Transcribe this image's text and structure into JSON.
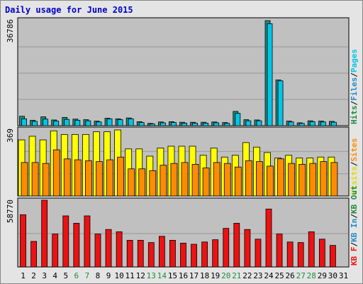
{
  "window": {
    "title": "Daily usage for June 2015"
  },
  "colors": {
    "page_bg": "#e4e4e4",
    "plot_bg": "#c0c0c0",
    "grid": "#999999",
    "pages": "#1e8c84",
    "files": "#00c6e8",
    "visits": "#ffff00",
    "sites": "#ff8c00",
    "kb": "#ee1111",
    "weekend": "#1e8c3c",
    "slash": "#000000"
  },
  "chart_data": [
    {
      "type": "bar",
      "panel": "hits",
      "ymax_label": "36786",
      "ymax": 36786,
      "grid_fractions": [
        0.25,
        0.5,
        0.75
      ],
      "categories": [
        "1",
        "2",
        "3",
        "4",
        "5",
        "6",
        "7",
        "8",
        "9",
        "10",
        "11",
        "12",
        "13",
        "14",
        "15",
        "16",
        "17",
        "18",
        "19",
        "20",
        "21",
        "22",
        "23",
        "24",
        "25",
        "26",
        "27",
        "28",
        "29",
        "30",
        "31"
      ],
      "weekend_days": [
        "6",
        "7",
        "13",
        "14",
        "20",
        "21",
        "27",
        "28"
      ],
      "legend": [
        {
          "label": "Hits",
          "color": "#1e8c3c"
        },
        {
          "label": "/",
          "color": "#000000"
        },
        {
          "label": "Files",
          "color": "#1e8cc8"
        },
        {
          "label": "/",
          "color": "#000000"
        },
        {
          "label": "Pages",
          "color": "#00c6e8"
        }
      ],
      "series": [
        {
          "name": "Hits",
          "color": "#1e8c84",
          "values": [
            3300,
            1900,
            3100,
            2000,
            2900,
            2300,
            2100,
            1600,
            2600,
            2400,
            2700,
            1400,
            800,
            1300,
            1400,
            1200,
            1200,
            1200,
            1300,
            1100,
            5000,
            2100,
            2000,
            36786,
            16000,
            1600,
            1000,
            1700,
            1600,
            1500,
            0
          ]
        },
        {
          "name": "Files",
          "color": "#00c6e8",
          "values": [
            2400,
            1500,
            2300,
            1600,
            2200,
            1900,
            1700,
            1300,
            2400,
            2100,
            2400,
            1100,
            600,
            1000,
            1100,
            900,
            900,
            900,
            1000,
            800,
            4300,
            1700,
            1700,
            35700,
            15700,
            1300,
            800,
            1400,
            1300,
            1200,
            0
          ]
        },
        {
          "name": "Pages",
          "color": "#00c6e8",
          "values": [
            0,
            0,
            0,
            0,
            0,
            0,
            0,
            0,
            0,
            0,
            0,
            0,
            0,
            0,
            0,
            0,
            0,
            0,
            0,
            0,
            0,
            0,
            0,
            0,
            0,
            0,
            0,
            0,
            0,
            0,
            0
          ]
        }
      ]
    },
    {
      "type": "bar",
      "panel": "visits",
      "ymax_label": "369",
      "ymax": 369,
      "grid_fractions": [
        0.333,
        0.667
      ],
      "categories": [
        "1",
        "2",
        "3",
        "4",
        "5",
        "6",
        "7",
        "8",
        "9",
        "10",
        "11",
        "12",
        "13",
        "14",
        "15",
        "16",
        "17",
        "18",
        "19",
        "20",
        "21",
        "22",
        "23",
        "24",
        "25",
        "26",
        "27",
        "28",
        "29",
        "30",
        "31"
      ],
      "legend": [
        {
          "label": "Visits",
          "color": "#dddd00"
        },
        {
          "label": "/",
          "color": "#000000"
        },
        {
          "label": "Sites",
          "color": "#ff8c00"
        }
      ],
      "series": [
        {
          "name": "Visits",
          "color": "#ffff00",
          "values": [
            310,
            330,
            310,
            360,
            340,
            340,
            340,
            355,
            355,
            365,
            260,
            260,
            220,
            265,
            275,
            275,
            275,
            225,
            265,
            215,
            225,
            295,
            270,
            240,
            210,
            225,
            210,
            210,
            215,
            215,
            0
          ]
        },
        {
          "name": "Sites",
          "color": "#ff8c00",
          "values": [
            185,
            185,
            180,
            255,
            205,
            200,
            195,
            190,
            200,
            215,
            150,
            150,
            140,
            170,
            180,
            185,
            175,
            155,
            185,
            180,
            160,
            195,
            190,
            165,
            205,
            180,
            175,
            180,
            190,
            185,
            0
          ]
        }
      ]
    },
    {
      "type": "bar",
      "panel": "kbytes",
      "ymax_label": "58770",
      "ymax": 58770,
      "grid_fractions": [
        0.5
      ],
      "categories": [
        "1",
        "2",
        "3",
        "4",
        "5",
        "6",
        "7",
        "8",
        "9",
        "10",
        "11",
        "12",
        "13",
        "14",
        "15",
        "16",
        "17",
        "18",
        "19",
        "20",
        "21",
        "22",
        "23",
        "24",
        "25",
        "26",
        "27",
        "28",
        "29",
        "30",
        "31"
      ],
      "legend": [
        {
          "label": "KB F",
          "color": "#ee1111"
        },
        {
          "label": "/",
          "color": "#000000"
        },
        {
          "label": "KB In",
          "color": "#1e8cc8"
        },
        {
          "label": "/",
          "color": "#000000"
        },
        {
          "label": "KB Out",
          "color": "#1e8c3c"
        }
      ],
      "series": [
        {
          "name": "KB F",
          "color": "#ee1111",
          "values": [
            46000,
            22500,
            58770,
            29000,
            45000,
            38500,
            45000,
            29000,
            33000,
            31000,
            23500,
            23500,
            21500,
            27000,
            23500,
            21000,
            20000,
            22000,
            24000,
            34000,
            38500,
            33000,
            24500,
            51000,
            29000,
            22000,
            21500,
            31000,
            24500,
            19000,
            0
          ]
        }
      ]
    }
  ]
}
